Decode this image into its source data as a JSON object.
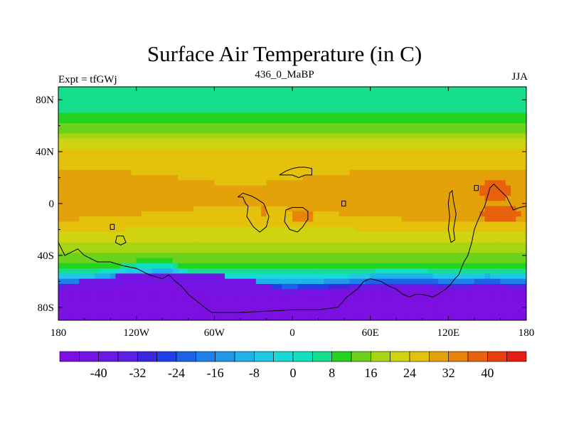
{
  "title": "Surface Air Temperature (in C)",
  "left_label": "Expt = tfGWj",
  "center_label": "436_0_MaBP",
  "right_label": "JJA",
  "chart_data": {
    "type": "heatmap",
    "title": "Surface Air Temperature (in C)",
    "x_ticks": [
      "180",
      "120W",
      "60W",
      "0",
      "60E",
      "120E",
      "180"
    ],
    "x_tick_values": [
      -180,
      -120,
      -60,
      0,
      60,
      120,
      180
    ],
    "y_ticks": [
      "80N",
      "40N",
      "0",
      "40S",
      "80S"
    ],
    "y_tick_values": [
      80,
      40,
      0,
      -40,
      -80
    ],
    "xlim": [
      -180,
      180
    ],
    "ylim": [
      -90,
      90
    ],
    "colorbar_labels": [
      "-40",
      "-32",
      "-24",
      "-16",
      "-8",
      "0",
      "8",
      "16",
      "24",
      "32",
      "40"
    ],
    "colorbar_label_values": [
      -40,
      -32,
      -24,
      -16,
      -8,
      0,
      8,
      16,
      24,
      32,
      40
    ],
    "colorbar_levels": [
      -48,
      -44,
      -40,
      -36,
      -32,
      -28,
      -24,
      -20,
      -16,
      -12,
      -8,
      -4,
      0,
      4,
      8,
      12,
      16,
      20,
      24,
      28,
      32,
      36,
      40,
      44
    ],
    "colorbar_colors": [
      "#7b10e0",
      "#7414e4",
      "#6a18e6",
      "#5b20e6",
      "#3a28e0",
      "#1f40e8",
      "#1c62e6",
      "#1e80ea",
      "#1f98ea",
      "#20b0ea",
      "#20c8e6",
      "#18d8d8",
      "#12e0bf",
      "#15de8c",
      "#22d420",
      "#6cd21c",
      "#a6d514",
      "#d0d410",
      "#e4c20c",
      "#e4a20a",
      "#e8840a",
      "#e8620e",
      "#e83e12",
      "#e81c16"
    ],
    "zonal_profile": [
      {
        "lat": 90,
        "t": 4
      },
      {
        "lat": 80,
        "t": 6
      },
      {
        "lat": 70,
        "t": 8
      },
      {
        "lat": 60,
        "t": 13
      },
      {
        "lat": 50,
        "t": 19
      },
      {
        "lat": 40,
        "t": 24
      },
      {
        "lat": 30,
        "t": 27
      },
      {
        "lat": 20,
        "t": 29
      },
      {
        "lat": 10,
        "t": 30
      },
      {
        "lat": 0,
        "t": 30
      },
      {
        "lat": -10,
        "t": 28
      },
      {
        "lat": -20,
        "t": 24
      },
      {
        "lat": -30,
        "t": 20
      },
      {
        "lat": -40,
        "t": 15
      },
      {
        "lat": -50,
        "t": 8
      },
      {
        "lat": -60,
        "t": -10
      },
      {
        "lat": -70,
        "t": -36
      },
      {
        "lat": -80,
        "t": -40
      },
      {
        "lat": -90,
        "t": -42
      }
    ],
    "hotspots": [
      {
        "lon": 155,
        "lat": 10,
        "rx": 12,
        "ry": 8,
        "t": 36
      },
      {
        "lon": 160,
        "lat": -8,
        "rx": 18,
        "ry": 6,
        "t": 36
      },
      {
        "lon": -22,
        "lat": -5,
        "rx": 3,
        "ry": 5,
        "t": 34
      },
      {
        "lon": 8,
        "lat": -10,
        "rx": 10,
        "ry": 3,
        "t": 34
      },
      {
        "lon": 40,
        "lat": 0,
        "rx": 2,
        "ry": 2,
        "t": 34
      }
    ],
    "coldspots": [
      {
        "lon": -95,
        "lat": -72,
        "rx": 90,
        "ry": 18,
        "t": -44
      },
      {
        "lon": 150,
        "lat": -75,
        "rx": 40,
        "ry": 12,
        "t": -42
      }
    ],
    "antarctic_margin": [
      {
        "lon": -180,
        "lat": -62
      },
      {
        "lon": -150,
        "lat": -60
      },
      {
        "lon": -120,
        "lat": -52
      },
      {
        "lon": -95,
        "lat": -50
      },
      {
        "lon": -75,
        "lat": -62
      },
      {
        "lon": -60,
        "lat": -70
      },
      {
        "lon": -30,
        "lat": -68
      },
      {
        "lon": 0,
        "lat": -70
      },
      {
        "lon": 30,
        "lat": -66
      },
      {
        "lon": 60,
        "lat": -60
      },
      {
        "lon": 90,
        "lat": -58
      },
      {
        "lon": 120,
        "lat": -62
      },
      {
        "lon": 150,
        "lat": -60
      },
      {
        "lon": 180,
        "lat": -62
      }
    ],
    "coastlines": [
      {
        "name": "gondwana-south",
        "points": [
          [
            -180,
            -30
          ],
          [
            -175,
            -40
          ],
          [
            -165,
            -35
          ],
          [
            -160,
            -40
          ],
          [
            -150,
            -45
          ],
          [
            -140,
            -45
          ],
          [
            -130,
            -48
          ],
          [
            -120,
            -50
          ],
          [
            -110,
            -55
          ],
          [
            -100,
            -58
          ],
          [
            -95,
            -55
          ],
          [
            -90,
            -60
          ],
          [
            -85,
            -64
          ],
          [
            -80,
            -70
          ],
          [
            -75,
            -74
          ],
          [
            -70,
            -78
          ],
          [
            -65,
            -82
          ],
          [
            -62,
            -84
          ],
          [
            -40,
            -84
          ],
          [
            -20,
            -83
          ],
          [
            0,
            -82
          ],
          [
            20,
            -82
          ],
          [
            35,
            -80
          ],
          [
            42,
            -72
          ],
          [
            50,
            -66
          ],
          [
            55,
            -60
          ],
          [
            60,
            -58
          ],
          [
            68,
            -60
          ],
          [
            75,
            -64
          ],
          [
            80,
            -66
          ],
          [
            85,
            -70
          ],
          [
            90,
            -72
          ],
          [
            95,
            -70
          ],
          [
            100,
            -70
          ],
          [
            108,
            -72
          ],
          [
            112,
            -70
          ],
          [
            118,
            -66
          ],
          [
            122,
            -62
          ],
          [
            125,
            -58
          ],
          [
            128,
            -55
          ],
          [
            130,
            -50
          ],
          [
            132,
            -45
          ],
          [
            135,
            -40
          ],
          [
            138,
            -30
          ],
          [
            140,
            -20
          ],
          [
            142,
            -15
          ],
          [
            145,
            -8
          ],
          [
            148,
            -2
          ],
          [
            150,
            5
          ]
        ]
      },
      {
        "name": "east-continent",
        "points": [
          [
            150,
            5
          ],
          [
            152,
            12
          ],
          [
            155,
            15
          ],
          [
            160,
            10
          ],
          [
            165,
            5
          ],
          [
            170,
            -5
          ],
          [
            175,
            -3
          ],
          [
            180,
            -2
          ]
        ]
      },
      {
        "name": "asia-margin",
        "points": [
          [
            122,
            -30
          ],
          [
            120,
            -20
          ],
          [
            121,
            -10
          ],
          [
            120,
            0
          ],
          [
            121,
            8
          ],
          [
            123,
            10
          ],
          [
            124,
            2
          ],
          [
            126,
            -8
          ],
          [
            124,
            -20
          ],
          [
            125,
            -28
          ],
          [
            122,
            -30
          ]
        ]
      },
      {
        "name": "north-continent",
        "points": [
          [
            -10,
            22
          ],
          [
            -5,
            25
          ],
          [
            0,
            27
          ],
          [
            5,
            28
          ],
          [
            10,
            28
          ],
          [
            15,
            27
          ],
          [
            15,
            22
          ],
          [
            10,
            22
          ],
          [
            5,
            20
          ],
          [
            0,
            22
          ],
          [
            -5,
            22
          ],
          [
            -10,
            22
          ]
        ]
      },
      {
        "name": "laurentia",
        "points": [
          [
            -42,
            5
          ],
          [
            -38,
            5
          ],
          [
            -36,
            0
          ],
          [
            -34,
            -2
          ],
          [
            -35,
            -10
          ],
          [
            -30,
            -18
          ],
          [
            -25,
            -22
          ],
          [
            -20,
            -18
          ],
          [
            -18,
            -10
          ],
          [
            -20,
            -5
          ],
          [
            -22,
            0
          ],
          [
            -28,
            4
          ],
          [
            -32,
            6
          ],
          [
            -38,
            8
          ],
          [
            -42,
            5
          ]
        ]
      },
      {
        "name": "baltica",
        "points": [
          [
            -5,
            -5
          ],
          [
            0,
            -3
          ],
          [
            8,
            -3
          ],
          [
            12,
            -6
          ],
          [
            12,
            -12
          ],
          [
            8,
            -18
          ],
          [
            4,
            -22
          ],
          [
            -2,
            -20
          ],
          [
            -6,
            -14
          ],
          [
            -5,
            -5
          ]
        ]
      },
      {
        "name": "island-a",
        "points": [
          [
            -140,
            -16
          ],
          [
            -137,
            -16
          ],
          [
            -137,
            -20
          ],
          [
            -140,
            -20
          ],
          [
            -140,
            -16
          ]
        ]
      },
      {
        "name": "island-b",
        "points": [
          [
            -135,
            -25
          ],
          [
            -130,
            -25
          ],
          [
            -128,
            -30
          ],
          [
            -132,
            -32
          ],
          [
            -136,
            -30
          ],
          [
            -135,
            -25
          ]
        ]
      },
      {
        "name": "island-c",
        "points": [
          [
            140,
            14
          ],
          [
            143,
            14
          ],
          [
            143,
            10
          ],
          [
            140,
            10
          ],
          [
            140,
            14
          ]
        ]
      },
      {
        "name": "island-d",
        "points": [
          [
            38,
            2
          ],
          [
            41,
            2
          ],
          [
            41,
            -2
          ],
          [
            38,
            -2
          ],
          [
            38,
            2
          ]
        ]
      }
    ]
  }
}
